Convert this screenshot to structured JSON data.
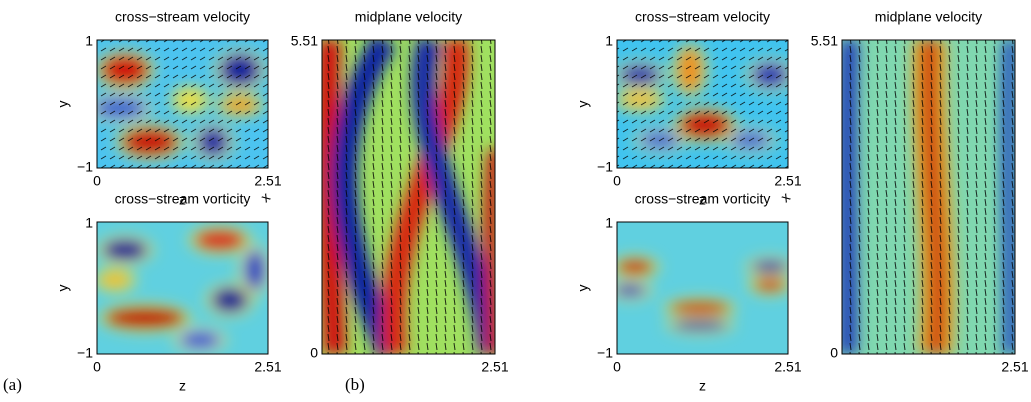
{
  "panels": [
    {
      "label": "(a)",
      "plots": [
        {
          "title": "cross−stream velocity",
          "yticks": [
            "1",
            "−1"
          ],
          "xticks": [
            "0",
            "2.51"
          ],
          "ylabel": "y",
          "xlabel": "z",
          "corner": "x"
        },
        {
          "title": "cross−stream vorticity",
          "yticks": [
            "1",
            "−1"
          ],
          "xticks": [
            "0",
            "2.51"
          ],
          "ylabel": "y",
          "xlabel": "z"
        },
        {
          "title": "midplane velocity",
          "yticks": [
            "5.51",
            "0"
          ],
          "xticks": [
            "2.51"
          ]
        }
      ]
    },
    {
      "label": "(b)",
      "plots": [
        {
          "title": "cross−stream velocity",
          "yticks": [
            "1",
            "−1"
          ],
          "xticks": [
            "0",
            "2.51"
          ],
          "ylabel": "y",
          "xlabel": "z",
          "corner": "x"
        },
        {
          "title": "cross−stream vorticity",
          "yticks": [
            "1",
            "−1"
          ],
          "xticks": [
            "0",
            "2.51"
          ],
          "ylabel": "y",
          "xlabel": "z"
        },
        {
          "title": "midplane velocity",
          "yticks": [
            "5.51",
            "0"
          ],
          "xticks": [
            "2.51"
          ]
        }
      ]
    }
  ]
}
